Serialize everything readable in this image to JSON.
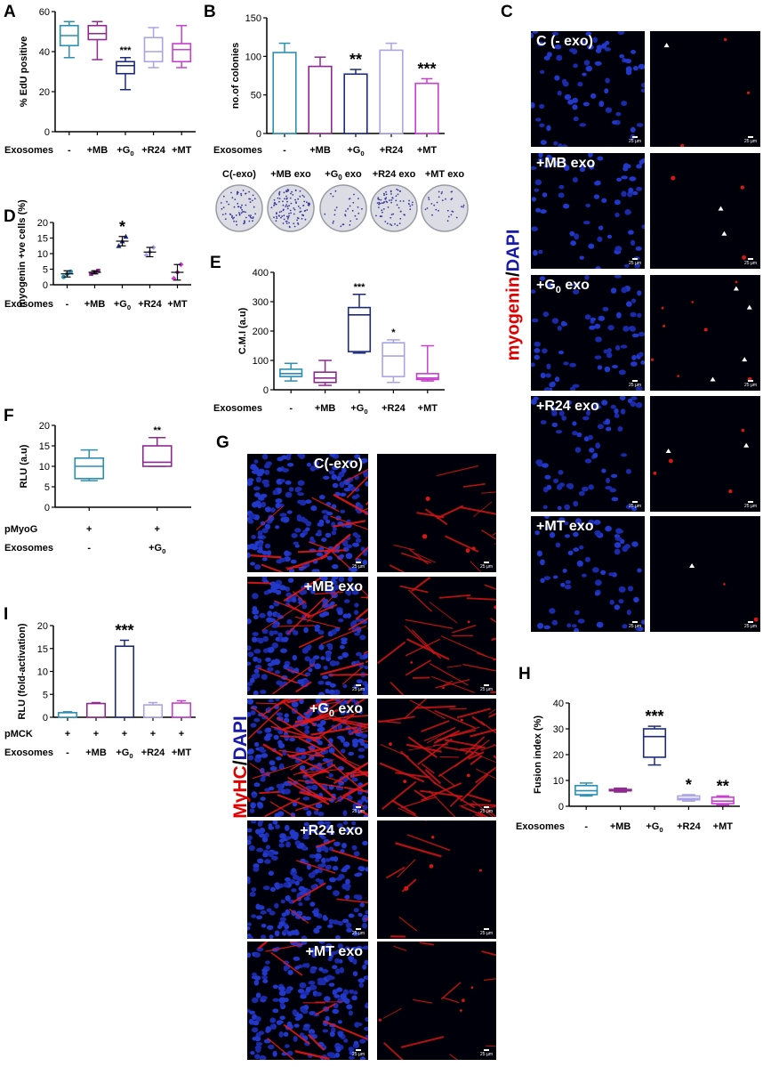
{
  "panels": {
    "A": "A",
    "B": "B",
    "C": "C",
    "D": "D",
    "E": "E",
    "F": "F",
    "G": "G",
    "H": "H",
    "I": "I"
  },
  "chart_data": [
    {
      "id": "A",
      "type": "box",
      "ylabel": "% EdU positive",
      "ylim": [
        0,
        60
      ],
      "yticks": [
        "0",
        "20",
        "40",
        "60"
      ],
      "row_label": "Exosomes",
      "categories": [
        "-",
        "+MB",
        "+G0",
        "+R24",
        "+MT"
      ],
      "boxes": [
        {
          "min": 37,
          "q1": 43,
          "med": 48,
          "q3": 53,
          "max": 55
        },
        {
          "min": 36,
          "q1": 46,
          "med": 49,
          "q3": 53,
          "max": 55
        },
        {
          "min": 21,
          "q1": 29,
          "med": 33,
          "q3": 35,
          "max": 37
        },
        {
          "min": 32,
          "q1": 35,
          "med": 40,
          "q3": 47,
          "max": 52
        },
        {
          "min": 32,
          "q1": 35,
          "med": 41,
          "q3": 44,
          "max": 53
        }
      ],
      "significance": [
        "",
        "",
        "***",
        "",
        ""
      ],
      "colors": [
        "#2b8fb5",
        "#8e2a8f",
        "#1c2a7a",
        "#a9a4e6",
        "#c83fd0"
      ]
    },
    {
      "id": "B",
      "type": "bar",
      "ylabel": "no.of colonies",
      "ylim": [
        0,
        150
      ],
      "yticks": [
        "0",
        "50",
        "100",
        "150"
      ],
      "row_label": "Exosomes",
      "categories": [
        "-",
        "+MB",
        "+G0",
        "+R24",
        "+MT"
      ],
      "values": [
        105,
        87,
        77,
        108,
        65
      ],
      "errors": [
        12,
        12,
        6,
        9,
        6
      ],
      "significance": [
        "",
        "",
        "**",
        "",
        "***"
      ],
      "colors": [
        "#2b8fb5",
        "#8e2a8f",
        "#1c2a7a",
        "#a9a4e6",
        "#c83fd0"
      ],
      "plate_labels": [
        "C(-exo)",
        "+MB exo",
        "+G0 exo",
        "+R24 exo",
        "+MT exo"
      ]
    },
    {
      "id": "D",
      "type": "scatter",
      "ylabel": "myogenin +ve cells (%)",
      "ylim": [
        0,
        20
      ],
      "yticks": [
        "0",
        "5",
        "10",
        "15",
        "20"
      ],
      "row_label": "Exosomes",
      "categories": [
        "-",
        "+MB",
        "+G0",
        "+R24",
        "+MT"
      ],
      "means": [
        3.5,
        4,
        14,
        10.5,
        4
      ],
      "errors": [
        1,
        0.5,
        1.5,
        1.5,
        2.5
      ],
      "points": [
        [
          2.5,
          3.5,
          4.2
        ],
        [
          3.5,
          4,
          4.5
        ],
        [
          12.5,
          14,
          15.5
        ],
        [
          9.5,
          10.5,
          12
        ],
        [
          2,
          4,
          6.5
        ]
      ],
      "significance": [
        "",
        "",
        "*",
        "",
        ""
      ],
      "colors": [
        "#2b8fb5",
        "#8e2a8f",
        "#1c2a7a",
        "#a9a4e6",
        "#c83fd0"
      ]
    },
    {
      "id": "E",
      "type": "box",
      "ylabel": "C.M.I (a.u)",
      "ylim": [
        0,
        400
      ],
      "yticks": [
        "0",
        "100",
        "200",
        "300",
        "400"
      ],
      "row_label": "Exosomes",
      "categories": [
        "-",
        "+MB",
        "+G0",
        "+R24",
        "+MT"
      ],
      "boxes": [
        {
          "min": 30,
          "q1": 45,
          "med": 55,
          "q3": 70,
          "max": 90
        },
        {
          "min": 15,
          "q1": 25,
          "med": 40,
          "q3": 60,
          "max": 100
        },
        {
          "min": 125,
          "q1": 130,
          "med": 255,
          "q3": 280,
          "max": 325
        },
        {
          "min": 25,
          "q1": 45,
          "med": 115,
          "q3": 160,
          "max": 170
        },
        {
          "min": 30,
          "q1": 35,
          "med": 40,
          "q3": 55,
          "max": 150
        }
      ],
      "significance": [
        "",
        "",
        "***",
        "*",
        ""
      ],
      "colors": [
        "#2b8fb5",
        "#8e2a8f",
        "#1c2a7a",
        "#a9a4e6",
        "#c83fd0"
      ]
    },
    {
      "id": "F",
      "type": "box",
      "ylabel": "RLU (a.u)",
      "ylim": [
        0,
        20
      ],
      "yticks": [
        "0",
        "5",
        "10",
        "15",
        "20"
      ],
      "rows": [
        {
          "label": "pMyoG",
          "values": [
            "+",
            "+"
          ]
        },
        {
          "label": "Exosomes",
          "values": [
            "-",
            "+G0"
          ]
        }
      ],
      "boxes": [
        {
          "min": 6.5,
          "q1": 7,
          "med": 10,
          "q3": 12,
          "max": 14
        },
        {
          "min": 10,
          "q1": 10,
          "med": 11,
          "q3": 15,
          "max": 17
        }
      ],
      "significance": [
        "",
        "**"
      ],
      "colors": [
        "#2b8fb5",
        "#8e2a8f"
      ]
    },
    {
      "id": "H",
      "type": "box",
      "ylabel": "Fusion index (%)",
      "ylim": [
        0,
        40
      ],
      "yticks": [
        "0",
        "10",
        "20",
        "30",
        "40"
      ],
      "row_label": "Exosomes",
      "categories": [
        "-",
        "+MB",
        "+G0",
        "+R24",
        "+MT"
      ],
      "boxes": [
        {
          "min": 4,
          "q1": 4.5,
          "med": 6,
          "q3": 8,
          "max": 9
        },
        {
          "min": 5.5,
          "q1": 6,
          "med": 6,
          "q3": 6.5,
          "max": 7
        },
        {
          "min": 16,
          "q1": 19,
          "med": 27,
          "q3": 30,
          "max": 31
        },
        {
          "min": 2,
          "q1": 2.5,
          "med": 3,
          "q3": 4,
          "max": 4.5
        },
        {
          "min": 0.5,
          "q1": 1,
          "med": 2,
          "q3": 3.5,
          "max": 4
        }
      ],
      "significance": [
        "",
        "",
        "***",
        "*",
        "**"
      ],
      "colors": [
        "#2b8fb5",
        "#8e2a8f",
        "#1c2a7a",
        "#a9a4e6",
        "#c83fd0"
      ]
    },
    {
      "id": "I",
      "type": "bar",
      "ylabel": "RLU (fold-activation)",
      "ylim": [
        0,
        20
      ],
      "yticks": [
        "0",
        "5",
        "10",
        "15",
        "20"
      ],
      "rows": [
        {
          "label": "pMCK",
          "values": [
            "+",
            "+",
            "+",
            "+",
            "+"
          ]
        },
        {
          "label": "Exosomes",
          "values": [
            "-",
            "+MB",
            "+G0",
            "+R24",
            "+MT"
          ]
        }
      ],
      "values": [
        1,
        3,
        15.5,
        2.7,
        3.1
      ],
      "errors": [
        0.2,
        0.2,
        1.3,
        0.5,
        0.5
      ],
      "significance": [
        "",
        "",
        "***",
        "",
        ""
      ],
      "colors": [
        "#2b8fb5",
        "#8e2a8f",
        "#1c2a7a",
        "#a9a4e6",
        "#c83fd0"
      ]
    }
  ],
  "microscopy": {
    "C": {
      "side_label_red": "myogenin",
      "side_label_slash": "/",
      "side_label_blue": "DAPI",
      "rows": [
        "C (- exo)",
        "+MB exo",
        "+G0 exo",
        "+R24 exo",
        "+MT exo"
      ],
      "scale_bar": "25 µm"
    },
    "G": {
      "side_label_red": "MyHC",
      "side_label_slash": "/",
      "side_label_blue": "DAPI",
      "rows": [
        "C(-exo)",
        "+MB exo",
        "+G0 exo",
        "+R24 exo",
        "+MT exo"
      ],
      "scale_bar": "25 µm"
    }
  }
}
